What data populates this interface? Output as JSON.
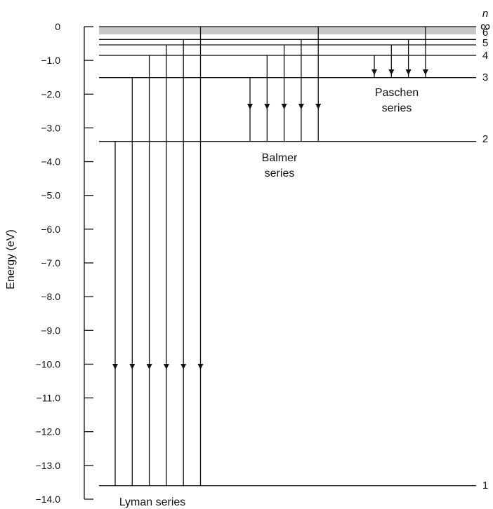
{
  "diagram": {
    "type": "energy-level-diagram",
    "y_axis": {
      "label": "Energy (eV)",
      "range": [
        -14.0,
        0
      ],
      "ticks": [
        0,
        -1.0,
        -2.0,
        -3.0,
        -4.0,
        -5.0,
        -6.0,
        -7.0,
        -8.0,
        -9.0,
        -10.0,
        -11.0,
        -12.0,
        -13.0,
        -14.0
      ],
      "tick_labels": [
        "0",
        "−1.0",
        "−2.0",
        "−3.0",
        "−4.0",
        "−5.0",
        "−6.0",
        "−7.0",
        "−8.0",
        "−9.0",
        "−10.0",
        "−11.0",
        "−12.0",
        "−13.0",
        "−14.0"
      ]
    },
    "n_symbol": "n",
    "levels": [
      {
        "n": "∞",
        "energy": 0.0
      },
      {
        "n": "6",
        "energy": -0.38
      },
      {
        "n": "5",
        "energy": -0.54
      },
      {
        "n": "4",
        "energy": -0.85
      },
      {
        "n": "3",
        "energy": -1.51
      },
      {
        "n": "2",
        "energy": -3.4
      },
      {
        "n": "1",
        "energy": -13.6
      }
    ],
    "series": [
      {
        "label_lines": [
          "Lyman series"
        ],
        "final_n": 1,
        "final_energy": -13.6,
        "initial_energies": [
          -3.4,
          -1.51,
          -0.85,
          -0.54,
          -0.38,
          0.0
        ]
      },
      {
        "label_lines": [
          "Balmer",
          "series"
        ],
        "final_n": 2,
        "final_energy": -3.4,
        "initial_energies": [
          -1.51,
          -0.85,
          -0.54,
          -0.38,
          0.0
        ]
      },
      {
        "label_lines": [
          "Paschen",
          "series"
        ],
        "final_n": 3,
        "final_energy": -1.51,
        "initial_energies": [
          -0.85,
          -0.54,
          -0.38,
          0.0
        ]
      }
    ]
  }
}
